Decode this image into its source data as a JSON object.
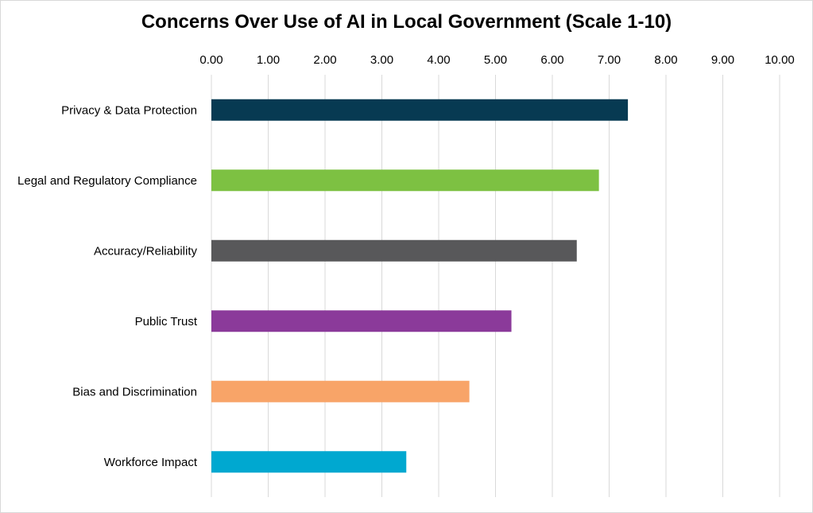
{
  "chart_data": {
    "type": "bar",
    "orientation": "horizontal",
    "title": "Concerns Over Use of AI in Local Government (Scale 1-10)",
    "xlabel": "",
    "ylabel": "",
    "xlim": [
      0,
      10
    ],
    "x_ticks": [
      "0.00",
      "1.00",
      "2.00",
      "3.00",
      "4.00",
      "5.00",
      "6.00",
      "7.00",
      "8.00",
      "9.00",
      "10.00"
    ],
    "x_axis_position": "top",
    "grid": true,
    "legend": "none",
    "categories": [
      "Privacy & Data Protection",
      "Legal and Regulatory Compliance",
      "Accuracy/Reliability",
      "Public Trust",
      "Bias and Discrimination",
      "Workforce Impact"
    ],
    "values": [
      7.33,
      6.82,
      6.43,
      5.28,
      4.54,
      3.43
    ],
    "colors": [
      "#073a52",
      "#7dc142",
      "#58585a",
      "#8b3a9a",
      "#f8a468",
      "#00a8d0"
    ]
  }
}
